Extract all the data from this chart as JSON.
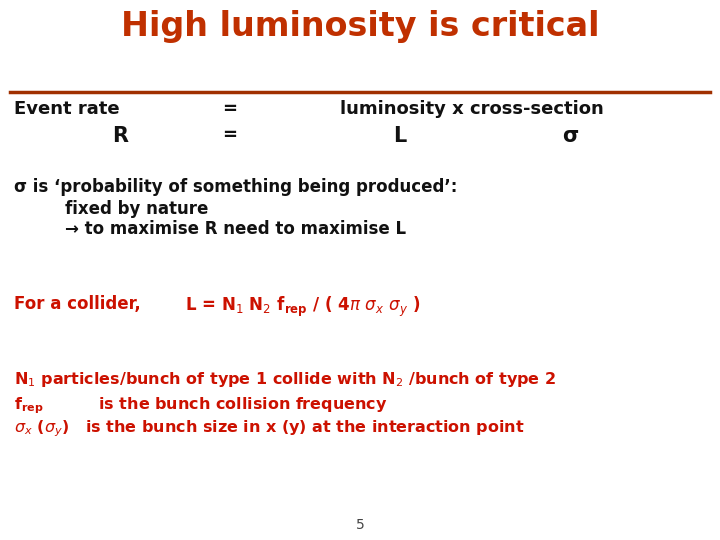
{
  "title": "High luminosity is critical",
  "title_color": "#C03000",
  "title_fontsize": 24,
  "background_color": "#FFFFFF",
  "line_color": "#A03000",
  "black": "#111111",
  "red": "#CC1100",
  "page_number": "5",
  "row1_col1": "Event rate",
  "row1_col2": "=",
  "row1_col3": "luminosity x cross-section",
  "row2_col1": "R",
  "row2_col2": "=",
  "row2_col3": "L",
  "row2_col4": "σ",
  "sigma_line1": "σ is ‘probability of something being produced’:",
  "sigma_line2": "fixed by nature",
  "sigma_line3": "→ to maximise R need to maximise L",
  "collider_label": "For a collider,",
  "page_num_color": "#444444"
}
